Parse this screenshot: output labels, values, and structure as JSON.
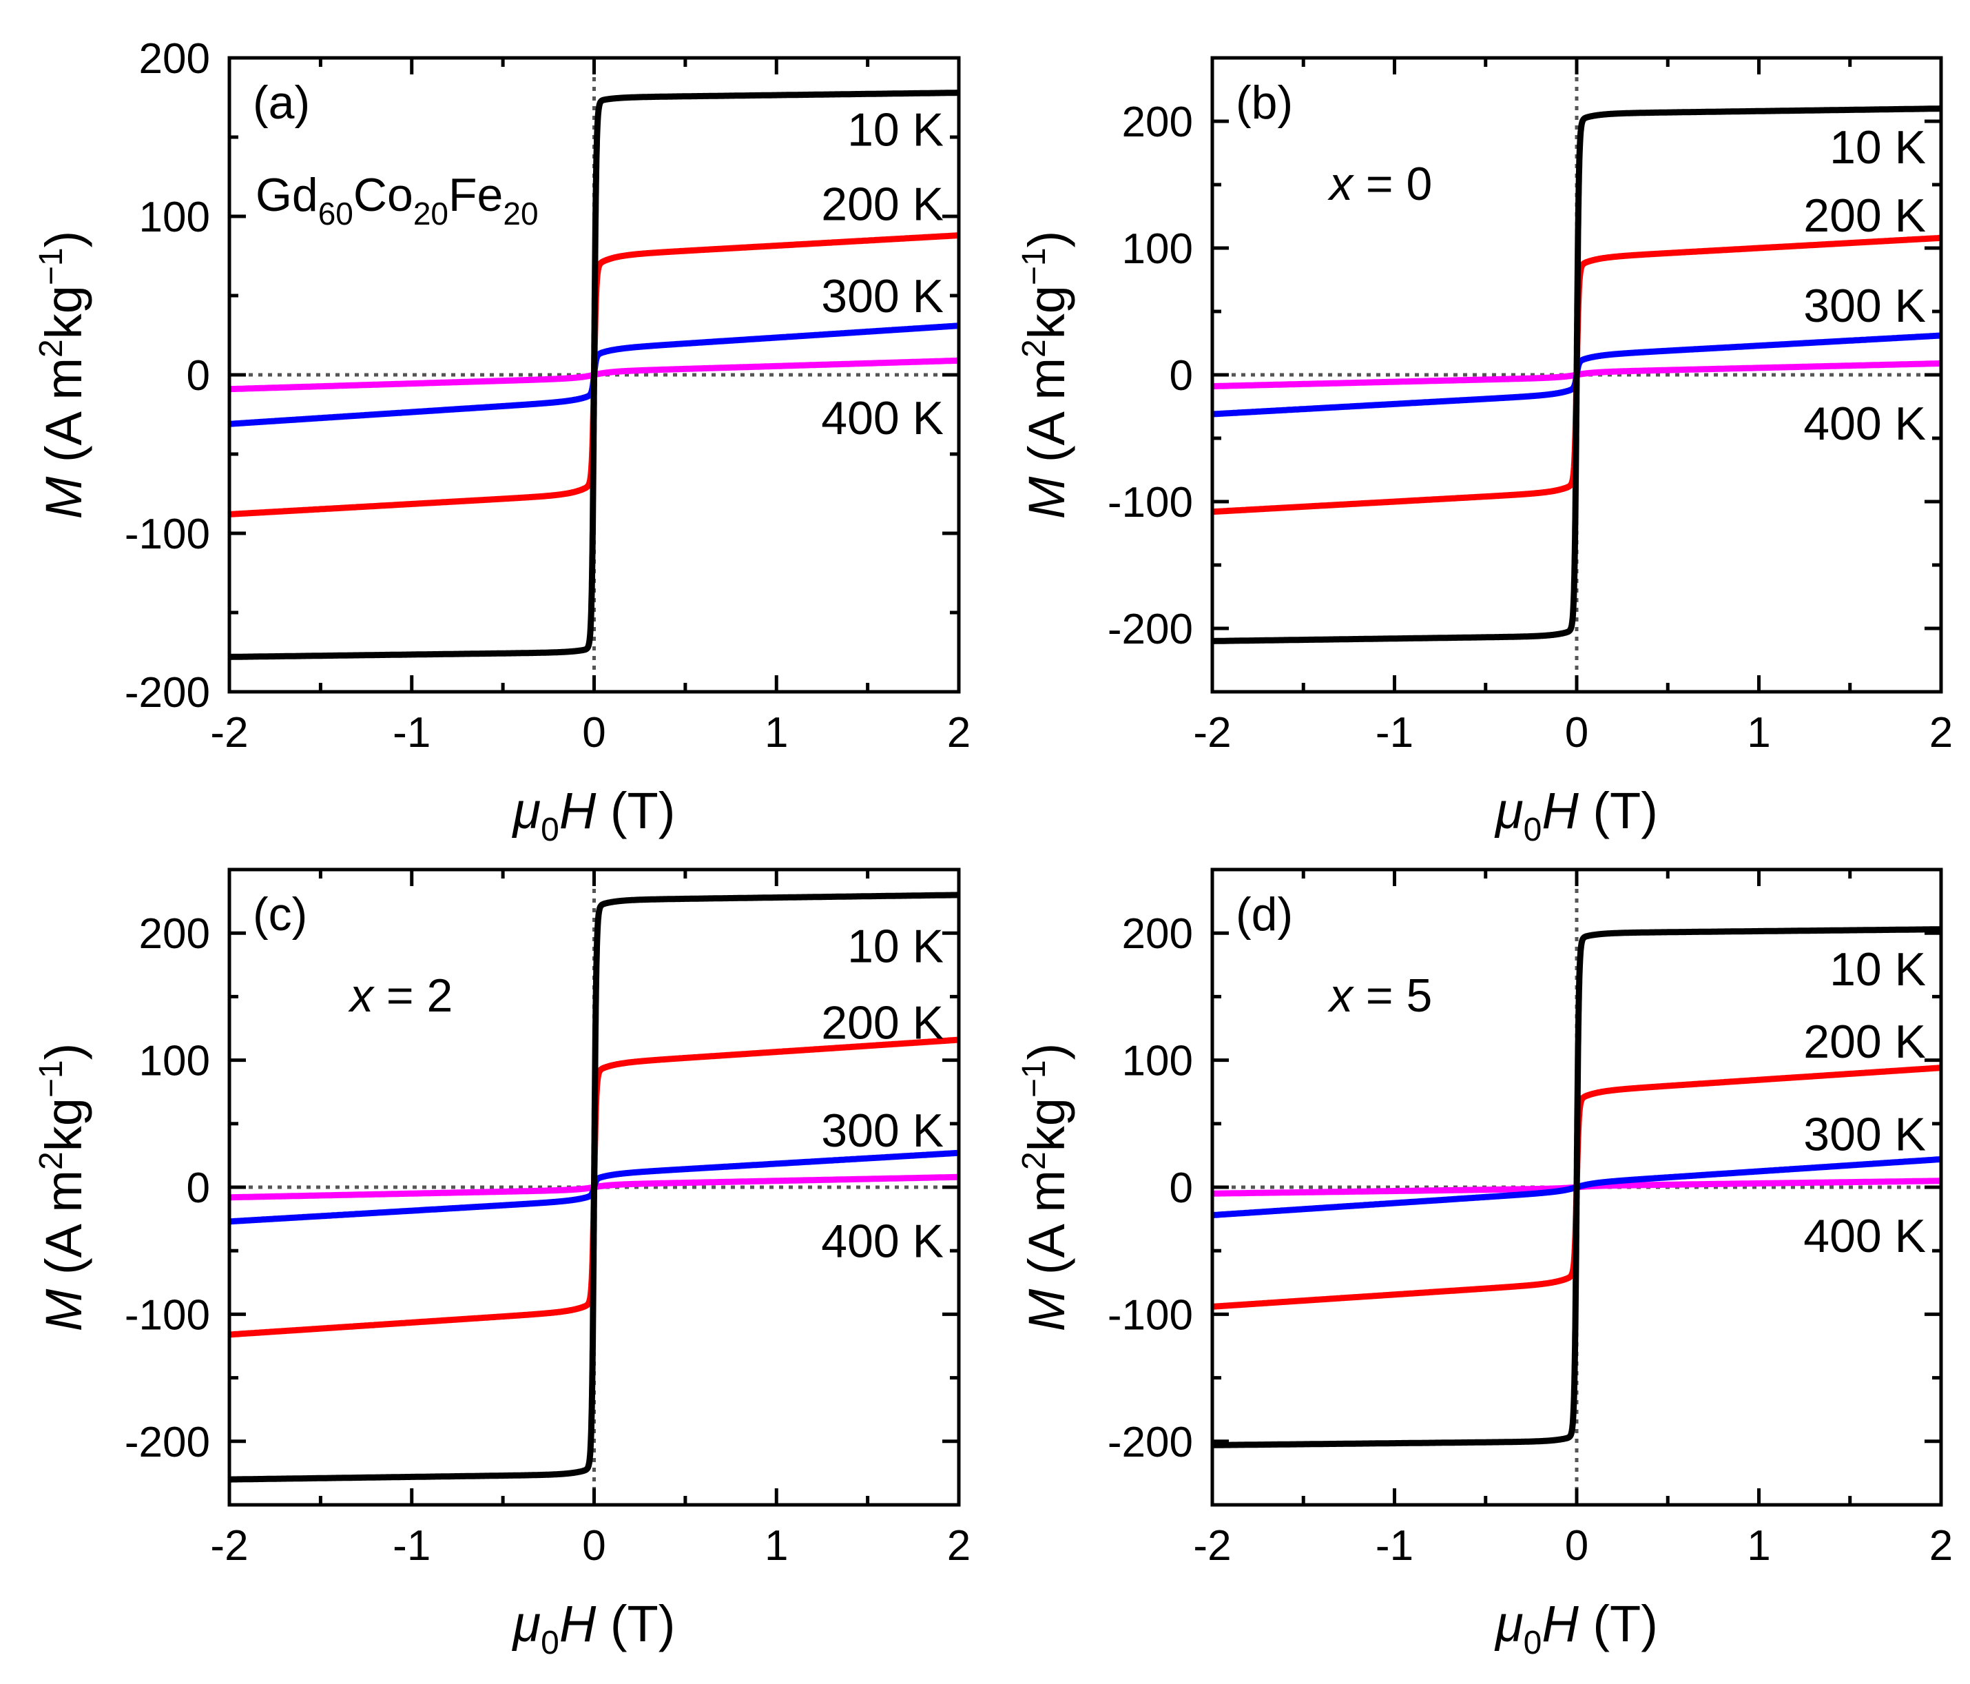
{
  "chart_data": [
    {
      "type": "line",
      "panel": "(a)",
      "annotation": {
        "parts": [
          {
            "t": "Gd"
          },
          {
            "t": "60",
            "sub": true
          },
          {
            "t": "Co"
          },
          {
            "t": "20",
            "sub": true
          },
          {
            "t": "Fe"
          },
          {
            "t": "20",
            "sub": true
          }
        ]
      },
      "xlabel": {
        "main": "μ",
        "sub": "0",
        "italic": "H",
        "unit": " (T)"
      },
      "ylabel": {
        "italic": "M",
        "pre": " (A m",
        "sup1": "2",
        "mid": "kg",
        "sup2": "−1",
        "post": ")"
      },
      "xlim": [
        -2,
        2
      ],
      "ylim": [
        -200,
        200
      ],
      "xticks": [
        -2,
        -1,
        0,
        1,
        2
      ],
      "xtick_labels": [
        "-2",
        "-1",
        "0",
        "1",
        "2"
      ],
      "yticks": [
        -200,
        -100,
        0,
        100,
        200
      ],
      "ytick_labels": [
        "-200",
        "-100",
        "0",
        "100",
        "200"
      ],
      "series": [
        {
          "name": "10 K",
          "color": "#000000",
          "ms": 175,
          "mmax": 178,
          "mc": 172,
          "slope": 1.5
        },
        {
          "name": "200 K",
          "color": "#ff0000",
          "ms": 75,
          "mmax": 88,
          "mc": 68,
          "slope": 6.5
        },
        {
          "name": "300 K",
          "color": "#0000ff",
          "ms": 16,
          "mmax": 31,
          "mc": 12,
          "slope": 7.5
        },
        {
          "name": "400 K",
          "color": "#ff00ff",
          "ms": 2,
          "mmax": 9,
          "mc": 0,
          "slope": 3.5
        }
      ],
      "labels": [
        {
          "text": "10 K",
          "y": 155
        },
        {
          "text": "200 K",
          "y": 108
        },
        {
          "text": "300 K",
          "y": 50
        },
        {
          "text": "400 K",
          "y": -27
        }
      ]
    },
    {
      "type": "line",
      "panel": "(b)",
      "annotation": {
        "parts": [
          {
            "t": "x",
            "italic": true
          },
          {
            "t": " = 0"
          }
        ]
      },
      "xlabel": {
        "main": "μ",
        "sub": "0",
        "italic": "H",
        "unit": " (T)"
      },
      "ylabel": {
        "italic": "M",
        "pre": " (A m",
        "sup1": "2",
        "mid": "kg",
        "sup2": "−1",
        "post": ")"
      },
      "xlim": [
        -2,
        2
      ],
      "ylim": [
        -250,
        250
      ],
      "xticks": [
        -2,
        -1,
        0,
        1,
        2
      ],
      "xtick_labels": [
        "-2",
        "-1",
        "0",
        "1",
        "2"
      ],
      "yticks": [
        -200,
        -100,
        0,
        100,
        200
      ],
      "ytick_labels": [
        "-200",
        "-100",
        "0",
        "100",
        "200"
      ],
      "series": [
        {
          "name": "10 K",
          "color": "#000000",
          "ms": 206,
          "mmax": 210,
          "mc": 200,
          "slope": 2
        },
        {
          "name": "200 K",
          "color": "#ff0000",
          "ms": 92,
          "mmax": 108,
          "mc": 85,
          "slope": 8
        },
        {
          "name": "300 K",
          "color": "#0000ff",
          "ms": 15,
          "mmax": 31,
          "mc": 10,
          "slope": 8
        },
        {
          "name": "400 K",
          "color": "#ff00ff",
          "ms": 2,
          "mmax": 9,
          "mc": 0,
          "slope": 3.5
        }
      ],
      "labels": [
        {
          "text": "10 K",
          "y": 180
        },
        {
          "text": "200 K",
          "y": 126
        },
        {
          "text": "300 K",
          "y": 55
        },
        {
          "text": "400 K",
          "y": -38
        }
      ]
    },
    {
      "type": "line",
      "panel": "(c)",
      "annotation": {
        "parts": [
          {
            "t": "x",
            "italic": true
          },
          {
            "t": " = 2"
          }
        ]
      },
      "xlabel": {
        "main": "μ",
        "sub": "0",
        "italic": "H",
        "unit": " (T)"
      },
      "ylabel": {
        "italic": "M",
        "pre": " (A m",
        "sup1": "2",
        "mid": "kg",
        "sup2": "−1",
        "post": ")"
      },
      "xlim": [
        -2,
        2
      ],
      "ylim": [
        -250,
        250
      ],
      "xticks": [
        -2,
        -1,
        0,
        1,
        2
      ],
      "xtick_labels": [
        "-2",
        "-1",
        "0",
        "1",
        "2"
      ],
      "yticks": [
        -200,
        -100,
        0,
        100,
        200
      ],
      "ytick_labels": [
        "-200",
        "-100",
        "0",
        "100",
        "200"
      ],
      "series": [
        {
          "name": "10 K",
          "color": "#000000",
          "ms": 226,
          "mmax": 230,
          "mc": 220,
          "slope": 2
        },
        {
          "name": "200 K",
          "color": "#ff0000",
          "ms": 97,
          "mmax": 116,
          "mc": 90,
          "slope": 9.5
        },
        {
          "name": "300 K",
          "color": "#0000ff",
          "ms": 10,
          "mmax": 27,
          "mc": 6,
          "slope": 8.5
        },
        {
          "name": "400 K",
          "color": "#ff00ff",
          "ms": 2,
          "mmax": 8,
          "mc": 0,
          "slope": 3
        }
      ],
      "labels": [
        {
          "text": "10 K",
          "y": 190
        },
        {
          "text": "200 K",
          "y": 130
        },
        {
          "text": "300 K",
          "y": 45
        },
        {
          "text": "400 K",
          "y": -42
        }
      ]
    },
    {
      "type": "line",
      "panel": "(d)",
      "annotation": {
        "parts": [
          {
            "t": "x",
            "italic": true
          },
          {
            "t": " = 5"
          }
        ]
      },
      "xlabel": {
        "main": "μ",
        "sub": "0",
        "italic": "H",
        "unit": " (T)"
      },
      "ylabel": {
        "italic": "M",
        "pre": " (A m",
        "sup1": "2",
        "mid": "kg",
        "sup2": "−1",
        "post": ")"
      },
      "xlim": [
        -2,
        2
      ],
      "ylim": [
        -250,
        250
      ],
      "xticks": [
        -2,
        -1,
        0,
        1,
        2
      ],
      "xtick_labels": [
        "-2",
        "-1",
        "0",
        "1",
        "2"
      ],
      "yticks": [
        -200,
        -100,
        0,
        100,
        200
      ],
      "ytick_labels": [
        "-200",
        "-100",
        "0",
        "100",
        "200"
      ],
      "series": [
        {
          "name": "10 K",
          "color": "#000000",
          "ms": 200,
          "mmax": 203,
          "mc": 195,
          "slope": 1.5
        },
        {
          "name": "200 K",
          "color": "#ff0000",
          "ms": 75,
          "mmax": 94,
          "mc": 68,
          "slope": 9.5
        },
        {
          "name": "300 K",
          "color": "#0000ff",
          "ms": 3,
          "mmax": 22,
          "mc": 0,
          "slope": 9.5
        },
        {
          "name": "400 K",
          "color": "#ff00ff",
          "ms": 1,
          "mmax": 5,
          "mc": 0,
          "slope": 2
        }
      ],
      "labels": [
        {
          "text": "10 K",
          "y": 172
        },
        {
          "text": "200 K",
          "y": 115
        },
        {
          "text": "300 K",
          "y": 42
        },
        {
          "text": "400 K",
          "y": -38
        }
      ]
    }
  ]
}
